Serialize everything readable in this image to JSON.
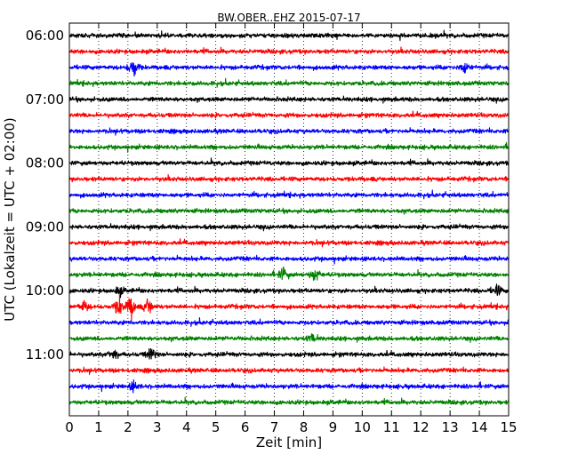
{
  "chart_data": {
    "type": "line",
    "title": "BW.OBER..EHZ 2015-07-17",
    "xlabel": "Zeit  [min]",
    "ylabel": "UTC (Lokalzeit = UTC + 02:00)",
    "xlim": [
      0,
      15
    ],
    "x_ticks": [
      "0",
      "1",
      "2",
      "3",
      "4",
      "5",
      "6",
      "7",
      "8",
      "9",
      "10",
      "11",
      "12",
      "13",
      "14",
      "15"
    ],
    "y_ticks": [
      "06:00",
      "07:00",
      "08:00",
      "09:00",
      "10:00",
      "11:00"
    ],
    "grid": true,
    "colors": [
      "#000000",
      "#ff0000",
      "#0000ff",
      "#008000"
    ],
    "series": [
      {
        "start": "06:00",
        "color": "#000000"
      },
      {
        "start": "06:15",
        "color": "#ff0000"
      },
      {
        "start": "06:30",
        "color": "#0000ff",
        "events": [
          {
            "x": 2.2,
            "amp": 1.5
          },
          {
            "x": 13.5,
            "amp": 1.0
          }
        ]
      },
      {
        "start": "06:45",
        "color": "#008000"
      },
      {
        "start": "07:00",
        "color": "#000000"
      },
      {
        "start": "07:15",
        "color": "#ff0000"
      },
      {
        "start": "07:30",
        "color": "#0000ff"
      },
      {
        "start": "07:45",
        "color": "#008000"
      },
      {
        "start": "08:00",
        "color": "#000000"
      },
      {
        "start": "08:15",
        "color": "#ff0000"
      },
      {
        "start": "08:30",
        "color": "#0000ff"
      },
      {
        "start": "08:45",
        "color": "#008000"
      },
      {
        "start": "09:00",
        "color": "#000000"
      },
      {
        "start": "09:15",
        "color": "#ff0000"
      },
      {
        "start": "09:30",
        "color": "#0000ff"
      },
      {
        "start": "09:45",
        "color": "#008000",
        "events": [
          {
            "x": 7.3,
            "amp": 0.9
          },
          {
            "x": 8.4,
            "amp": 1.0
          }
        ]
      },
      {
        "start": "10:00",
        "color": "#000000",
        "events": [
          {
            "x": 1.7,
            "amp": 0.6
          },
          {
            "x": 14.6,
            "amp": 0.7
          }
        ]
      },
      {
        "start": "10:15",
        "color": "#ff0000",
        "events": [
          {
            "x": 0.5,
            "amp": 0.8
          },
          {
            "x": 1.7,
            "amp": 1.3
          },
          {
            "x": 2.1,
            "amp": 1.6
          },
          {
            "x": 2.7,
            "amp": 1.1
          }
        ]
      },
      {
        "start": "10:30",
        "color": "#0000ff"
      },
      {
        "start": "10:45",
        "color": "#008000",
        "events": [
          {
            "x": 8.3,
            "amp": 0.6
          }
        ]
      },
      {
        "start": "11:00",
        "color": "#000000",
        "events": [
          {
            "x": 1.5,
            "amp": 0.9
          },
          {
            "x": 2.8,
            "amp": 0.9
          }
        ]
      },
      {
        "start": "11:15",
        "color": "#ff0000"
      },
      {
        "start": "11:30",
        "color": "#0000ff",
        "events": [
          {
            "x": 2.2,
            "amp": 0.6
          }
        ]
      },
      {
        "start": "11:45",
        "color": "#008000"
      }
    ]
  }
}
